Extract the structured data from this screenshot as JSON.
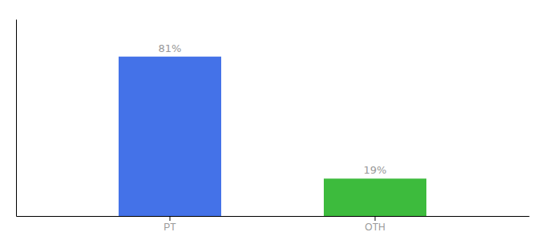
{
  "chart_data": {
    "type": "bar",
    "categories": [
      "PT",
      "OTH"
    ],
    "values": [
      81,
      19
    ],
    "value_labels": [
      "81%",
      "19%"
    ],
    "colors": [
      "#4472e8",
      "#3dbb3d"
    ],
    "ylim": [
      0,
      100
    ],
    "data_labels": true,
    "tick_labels": "x",
    "grid": false
  }
}
